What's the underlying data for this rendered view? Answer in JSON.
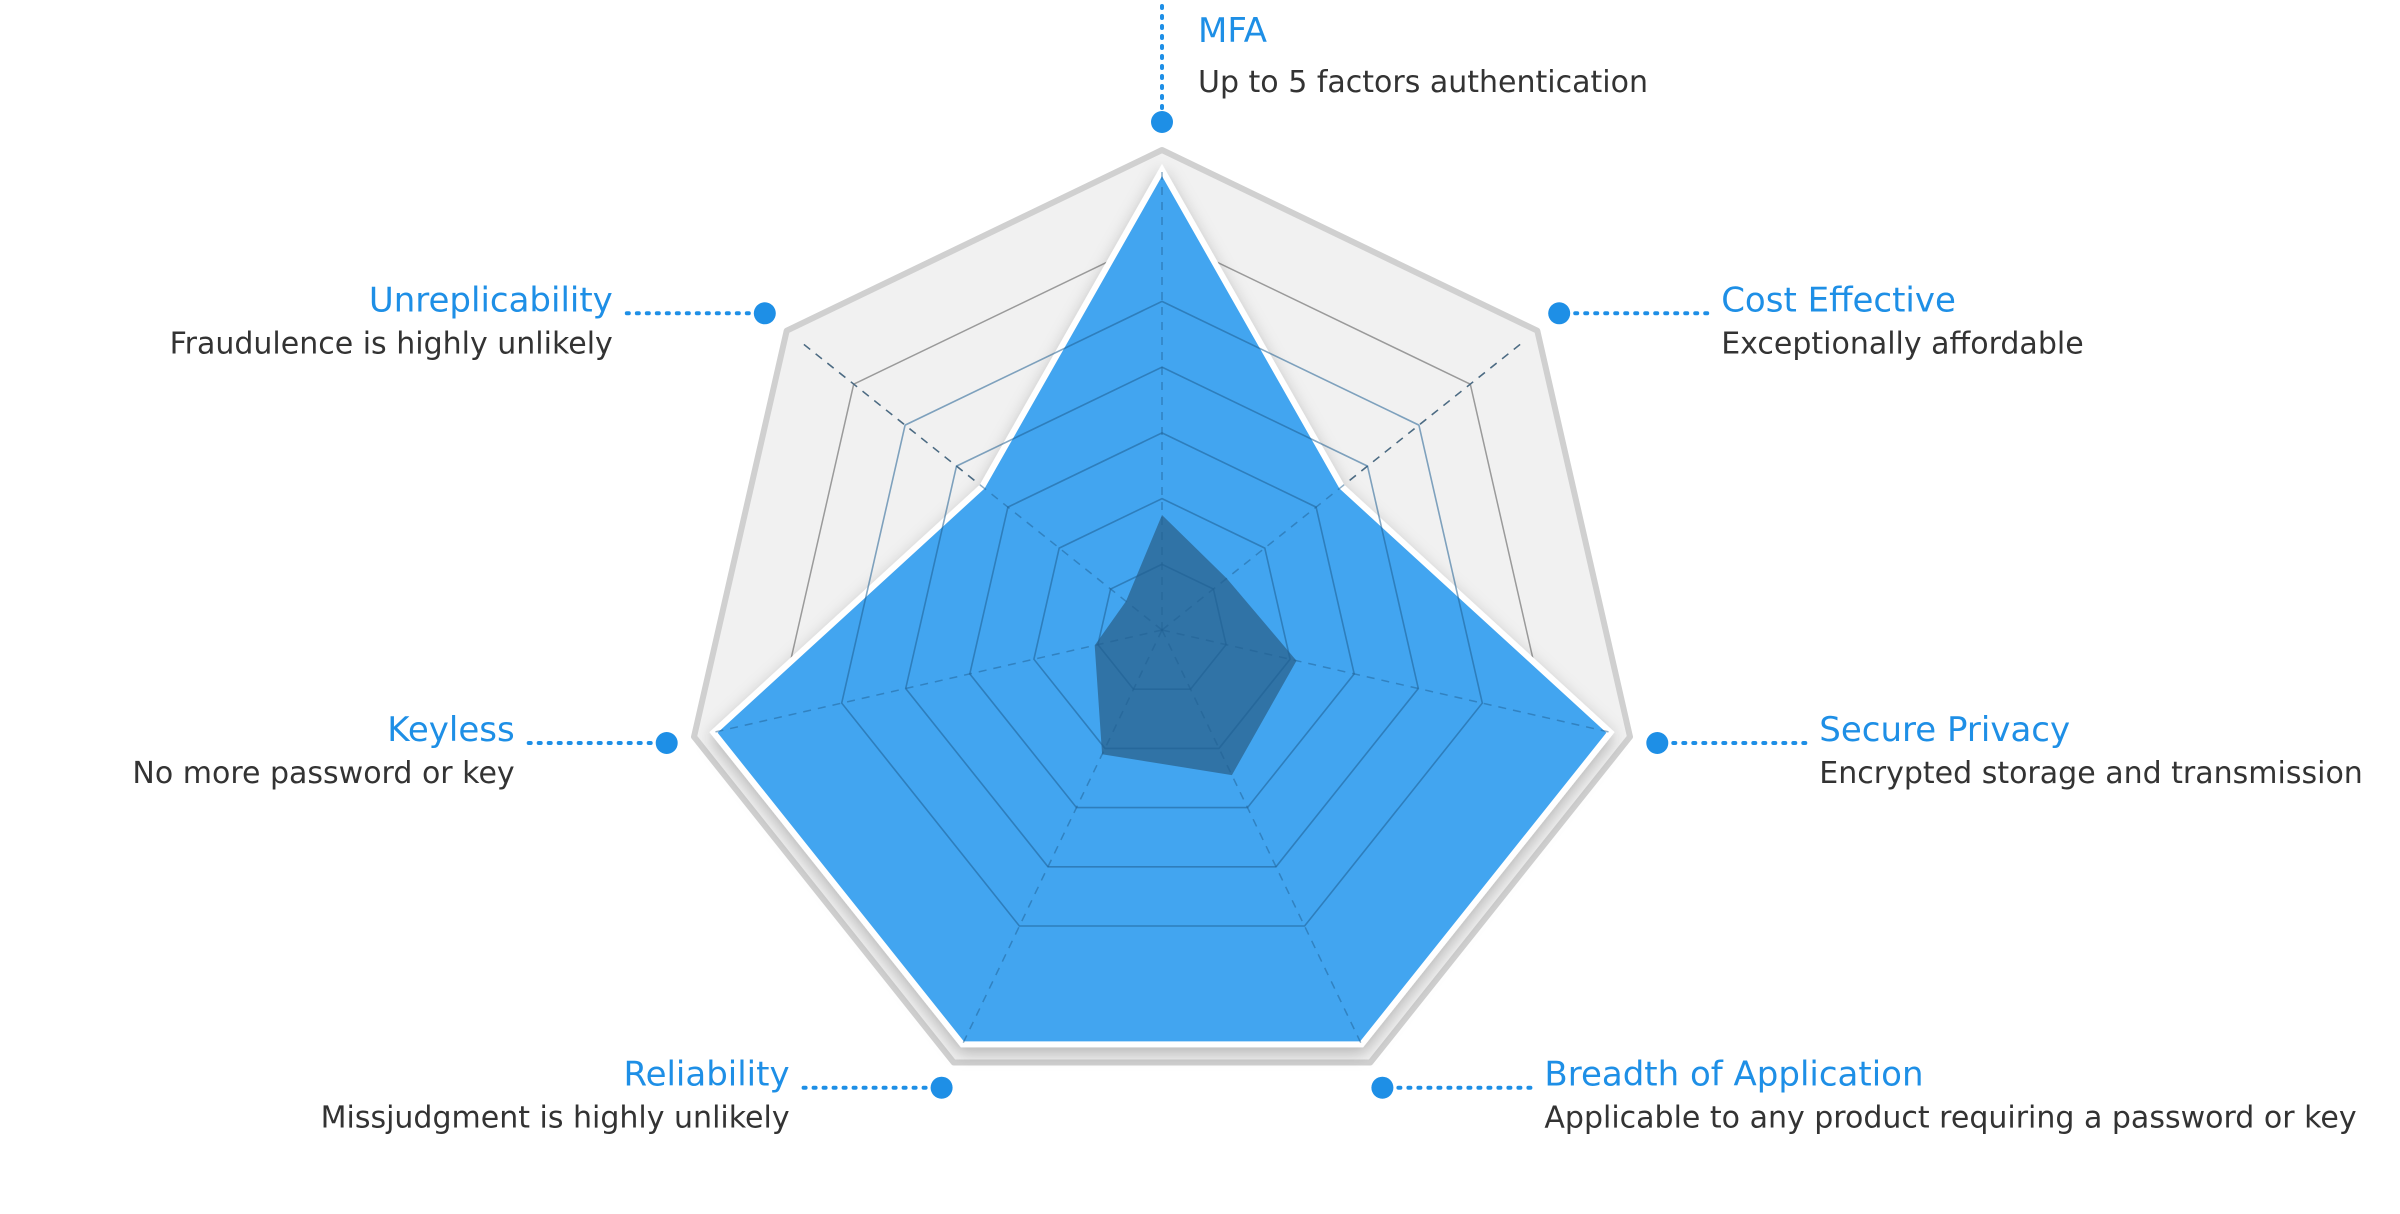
{
  "chart_data": {
    "type": "radar",
    "levels": 7,
    "axes": [
      {
        "label": "MFA",
        "description": "Up to 5 factors authentication"
      },
      {
        "label": "Cost Effective",
        "description": "Exceptionally affordable"
      },
      {
        "label": "Secure Privacy",
        "description": "Encrypted storage and transmission"
      },
      {
        "label": "Breadth of Application",
        "description": "Applicable to any product requiring a password or key"
      },
      {
        "label": "Reliability",
        "description": "Missjudgment is highly unlikely"
      },
      {
        "label": "Keyless",
        "description": "No more password or key"
      },
      {
        "label": "Unreplicability",
        "description": "Fraudulence is highly unlikely"
      }
    ],
    "series": [
      {
        "values": [
          1.0,
          0.5,
          1.0,
          1.0,
          1.0,
          1.0,
          0.5
        ],
        "color": "#42a5f0"
      },
      {
        "values": [
          0.25,
          0.18,
          0.3,
          0.35,
          0.3,
          0.15,
          0.1
        ],
        "color": "#2f6e9d"
      }
    ],
    "colors": {
      "accent": "#1e8fe6",
      "frame": "#d0d0d0",
      "frame_fill": "#f1f1f1",
      "desc_text": "#333333"
    }
  }
}
